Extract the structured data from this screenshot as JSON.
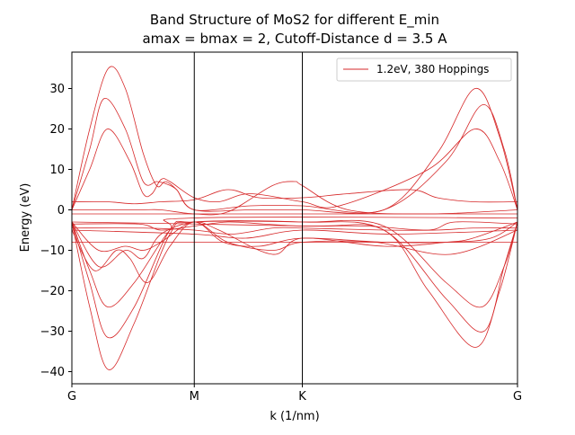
{
  "chart_data": {
    "type": "line",
    "title_line1": "Band Structure of MoS2 for different E_min",
    "title_line2": "amax = bmax = 2, Cutoff-Distance d = 3.5 A",
    "xlabel": "k (1/nm)",
    "ylabel": "Energy (eV)",
    "x_ticks": [
      {
        "label": "G",
        "pos": 0
      },
      {
        "label": "M",
        "pos": 0.2747
      },
      {
        "label": "K",
        "pos": 0.5172
      },
      {
        "label": "G",
        "pos": 1
      }
    ],
    "y_ticks": [
      30,
      20,
      10,
      0,
      -10,
      -20,
      -30,
      -40
    ],
    "ylim": [
      -43,
      39
    ],
    "xlim": [
      0,
      1
    ],
    "grid": false,
    "legend_position": "top-right",
    "color": "#d62728",
    "series": [
      {
        "name": "1.2eV, 380 Hoppings",
        "bands": [
          [
            [
              0,
              0
            ],
            [
              0.04,
              20
            ],
            [
              0.082,
              35
            ],
            [
              0.12,
              30
            ],
            [
              0.16,
              14
            ],
            [
              0.19,
              6
            ],
            [
              0.21,
              7
            ],
            [
              0.235,
              5
            ],
            [
              0.2747,
              0
            ],
            [
              0.4,
              1
            ],
            [
              0.5172,
              1
            ],
            [
              0.7,
              0
            ],
            [
              0.82,
              14
            ],
            [
              0.905,
              30
            ],
            [
              0.96,
              18
            ],
            [
              1,
              0
            ]
          ],
          [
            [
              0,
              0
            ],
            [
              0.04,
              15
            ],
            [
              0.072,
              27.5
            ],
            [
              0.12,
              20
            ],
            [
              0.16,
              7
            ],
            [
              0.19,
              7
            ],
            [
              0.21,
              6.5
            ],
            [
              0.235,
              5
            ],
            [
              0.2747,
              0
            ],
            [
              0.4,
              0
            ],
            [
              0.5172,
              0
            ],
            [
              0.7,
              0
            ],
            [
              0.84,
              12
            ],
            [
              0.922,
              26
            ],
            [
              0.97,
              15
            ],
            [
              1,
              0
            ]
          ],
          [
            [
              0,
              0
            ],
            [
              0.04,
              10
            ],
            [
              0.08,
              20
            ],
            [
              0.13,
              12
            ],
            [
              0.16,
              4
            ],
            [
              0.18,
              4
            ],
            [
              0.2,
              7.5
            ],
            [
              0.22,
              7
            ],
            [
              0.2747,
              3
            ],
            [
              0.33,
              2
            ],
            [
              0.4,
              4
            ],
            [
              0.5172,
              2
            ],
            [
              0.6,
              1
            ],
            [
              0.8,
              10
            ],
            [
              0.905,
              20
            ],
            [
              0.96,
              12
            ],
            [
              1,
              0
            ]
          ],
          [
            [
              0,
              2
            ],
            [
              0.08,
              2
            ],
            [
              0.14,
              1.5
            ],
            [
              0.2,
              2
            ],
            [
              0.2747,
              2.5
            ],
            [
              0.35,
              5
            ],
            [
              0.42,
              3
            ],
            [
              0.5172,
              3
            ],
            [
              0.62,
              4
            ],
            [
              0.76,
              5
            ],
            [
              0.82,
              3
            ],
            [
              0.9,
              2
            ],
            [
              1,
              2
            ]
          ],
          [
            [
              0,
              0
            ],
            [
              0.15,
              0
            ],
            [
              0.2,
              0
            ],
            [
              0.2747,
              -1
            ],
            [
              0.35,
              -0.5
            ],
            [
              0.45,
              6
            ],
            [
              0.5,
              7
            ],
            [
              0.5172,
              6
            ],
            [
              0.62,
              0
            ],
            [
              0.8,
              -1
            ],
            [
              1,
              0
            ]
          ],
          [
            [
              0,
              -1
            ],
            [
              1,
              -1
            ]
          ],
          [
            [
              0,
              -3.5
            ],
            [
              0.15,
              -3.5
            ],
            [
              0.2,
              -5
            ],
            [
              0.2747,
              -4
            ],
            [
              0.35,
              -3
            ],
            [
              0.43,
              -3.5
            ],
            [
              0.5172,
              -4
            ],
            [
              0.66,
              -4
            ],
            [
              0.8,
              -5
            ],
            [
              0.86,
              -3
            ],
            [
              1,
              -3.5
            ]
          ],
          [
            [
              0,
              -4.5
            ],
            [
              0.16,
              -4.5
            ],
            [
              0.2747,
              -5
            ],
            [
              0.36,
              -6
            ],
            [
              0.45,
              -4.5
            ],
            [
              0.5172,
              -4.5
            ],
            [
              0.7,
              -5
            ],
            [
              0.82,
              -5
            ],
            [
              0.9,
              -4.5
            ],
            [
              1,
              -4.5
            ]
          ],
          [
            [
              0,
              -5
            ],
            [
              0.2747,
              -6
            ],
            [
              0.39,
              -7
            ],
            [
              0.5172,
              -5
            ],
            [
              0.72,
              -6
            ],
            [
              1,
              -5
            ]
          ],
          [
            [
              0,
              -8
            ],
            [
              1,
              -8
            ]
          ],
          [
            [
              0,
              -3
            ],
            [
              0.06,
              -10
            ],
            [
              0.12,
              -9
            ],
            [
              0.16,
              -10
            ],
            [
              0.2,
              -8
            ],
            [
              0.2747,
              -3
            ],
            [
              0.34,
              -8
            ],
            [
              0.42,
              -9
            ],
            [
              0.5172,
              -7
            ],
            [
              0.7,
              -8
            ],
            [
              0.84,
              -8
            ],
            [
              0.94,
              -7
            ],
            [
              1,
              -3
            ]
          ],
          [
            [
              0,
              -3
            ],
            [
              0.06,
              -14
            ],
            [
              0.12,
              -10
            ],
            [
              0.16,
              -12
            ],
            [
              0.2,
              -6
            ],
            [
              0.2747,
              -3
            ],
            [
              0.33,
              -5
            ],
            [
              0.45,
              -11
            ],
            [
              0.5172,
              -7
            ],
            [
              0.7,
              -9
            ],
            [
              0.84,
              -8
            ],
            [
              0.9,
              -7
            ],
            [
              1,
              -3
            ]
          ],
          [
            [
              0,
              -5
            ],
            [
              0.05,
              -15
            ],
            [
              0.1,
              -10
            ],
            [
              0.13,
              -12
            ],
            [
              0.17,
              -18
            ],
            [
              0.22,
              -9
            ],
            [
              0.2747,
              -3
            ],
            [
              0.35,
              -8
            ],
            [
              0.45,
              -10
            ],
            [
              0.5172,
              -8
            ],
            [
              0.68,
              -8
            ],
            [
              0.85,
              -11
            ],
            [
              1,
              -5
            ]
          ],
          [
            [
              0,
              -3
            ],
            [
              0.04,
              -15
            ],
            [
              0.08,
              -24
            ],
            [
              0.14,
              -18
            ],
            [
              0.22,
              -5
            ],
            [
              0.2747,
              -2
            ],
            [
              1,
              -2
            ]
          ],
          [
            [
              0,
              -3
            ],
            [
              0.04,
              -18
            ],
            [
              0.08,
              -31.5
            ],
            [
              0.14,
              -24
            ],
            [
              0.22,
              -5
            ],
            [
              0.2747,
              -3
            ],
            [
              0.5172,
              -3
            ],
            [
              0.7,
              -4
            ],
            [
              0.84,
              -18
            ],
            [
              0.92,
              -24
            ],
            [
              0.97,
              -14
            ],
            [
              1,
              -3
            ]
          ],
          [
            [
              0,
              -3
            ],
            [
              0.04,
              -24
            ],
            [
              0.082,
              -39.5
            ],
            [
              0.14,
              -28
            ],
            [
              0.22,
              -6
            ],
            [
              0.2747,
              -3
            ],
            [
              0.5172,
              -3
            ],
            [
              0.7,
              -5
            ],
            [
              0.84,
              -22
            ],
            [
              0.925,
              -30
            ],
            [
              0.97,
              -14
            ],
            [
              1,
              -3
            ]
          ],
          [
            [
              0,
              -3
            ],
            [
              0.5172,
              -4
            ],
            [
              0.7,
              -5
            ],
            [
              0.8,
              -20
            ],
            [
              0.905,
              -34
            ],
            [
              0.96,
              -20
            ],
            [
              1,
              -3
            ]
          ]
        ]
      }
    ]
  }
}
